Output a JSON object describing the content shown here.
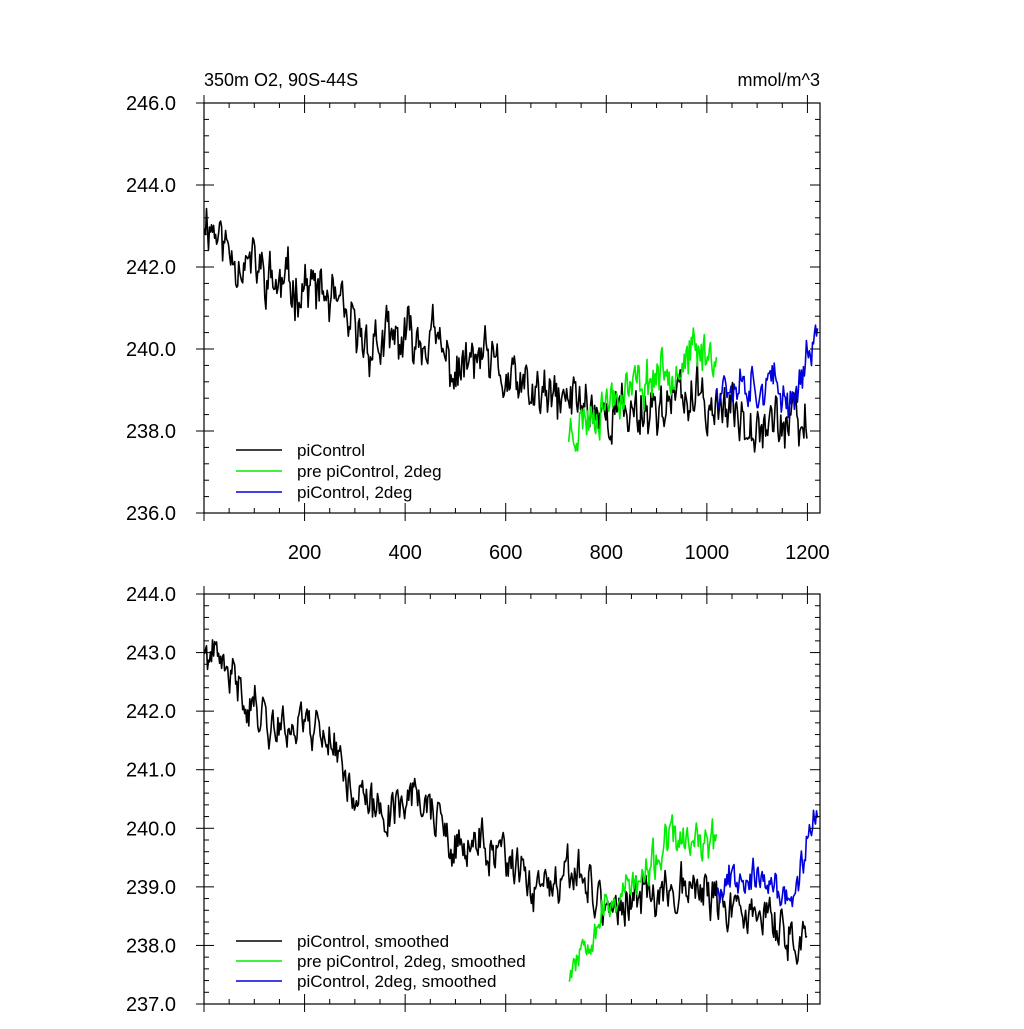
{
  "colors": {
    "piControl": "#000000",
    "pre_piControl_2deg": "#00ee00",
    "piControl_2deg": "#0000dd"
  },
  "chart_data": [
    {
      "type": "line",
      "title": "350m O2, 90S-44S",
      "units": "mmol/m^3",
      "xlim": [
        0,
        1225
      ],
      "ylim": [
        236.0,
        246.0
      ],
      "x_ticks": [
        200,
        400,
        600,
        800,
        1000,
        1200
      ],
      "x_tick_labels": [
        "200",
        "400",
        "600",
        "800",
        "1000",
        "1200"
      ],
      "y_ticks": [
        236,
        238,
        240,
        242,
        244,
        246
      ],
      "y_tick_labels": [
        "236.0",
        "238.0",
        "240.0",
        "242.0",
        "244.0",
        "246.0"
      ],
      "legend_position": "bottom-left",
      "series": [
        {
          "name": "piControl",
          "color": "#000000",
          "x": [
            1,
            50,
            100,
            150,
            200,
            250,
            300,
            350,
            400,
            450,
            500,
            550,
            600,
            650,
            700,
            750,
            800,
            850,
            900,
            950,
            1000,
            1050,
            1100,
            1150,
            1200
          ],
          "mean": [
            243.3,
            242.4,
            242.0,
            241.5,
            241.6,
            241.2,
            240.3,
            240.1,
            240.2,
            240.3,
            239.4,
            239.8,
            239.2,
            238.9,
            238.7,
            238.8,
            238.4,
            238.5,
            238.6,
            238.8,
            238.7,
            238.4,
            238.4,
            238.2,
            238.0
          ],
          "noise": 0.7,
          "seed": 11
        },
        {
          "name": "pre piControl, 2deg",
          "color": "#00ee00",
          "x": [
            725,
            775,
            825,
            875,
            925,
            975,
            1020
          ],
          "mean": [
            238.0,
            238.5,
            239.0,
            239.2,
            239.6,
            239.8,
            240.0
          ],
          "noise": 0.6,
          "seed": 23
        },
        {
          "name": "piControl, 2deg",
          "color": "#0000dd",
          "x": [
            1020,
            1070,
            1120,
            1170,
            1220
          ],
          "mean": [
            239.2,
            239.3,
            239.1,
            238.8,
            240.4
          ],
          "noise": 0.55,
          "seed": 37
        }
      ]
    },
    {
      "type": "line",
      "title": "",
      "xlim": [
        0,
        1225
      ],
      "ylim": [
        237.0,
        244.0
      ],
      "x_ticks": [
        200,
        400,
        600,
        800,
        1000,
        1200
      ],
      "y_ticks": [
        237,
        238,
        239,
        240,
        241,
        242,
        243,
        244
      ],
      "y_tick_labels": [
        "237.0",
        "238.0",
        "239.0",
        "240.0",
        "241.0",
        "242.0",
        "243.0",
        "244.0"
      ],
      "legend_position": "bottom-left",
      "series": [
        {
          "name": "piControl, smoothed",
          "color": "#000000",
          "x": [
            1,
            50,
            100,
            150,
            200,
            250,
            300,
            350,
            400,
            450,
            500,
            550,
            600,
            650,
            700,
            750,
            800,
            850,
            900,
            950,
            1000,
            1050,
            1100,
            1150,
            1200
          ],
          "mean": [
            243.0,
            242.6,
            242.1,
            241.7,
            241.9,
            241.6,
            240.6,
            240.2,
            240.6,
            240.4,
            239.5,
            239.8,
            239.4,
            239.0,
            238.9,
            239.3,
            238.6,
            238.7,
            238.9,
            239.1,
            238.9,
            238.5,
            238.6,
            238.2,
            238.1
          ],
          "noise": 0.4,
          "seed": 41
        },
        {
          "name": "pre piControl, 2deg, smoothed",
          "color": "#00ee00",
          "x": [
            725,
            775,
            825,
            875,
            925,
            975,
            1020
          ],
          "mean": [
            237.6,
            238.4,
            238.9,
            239.1,
            239.8,
            239.7,
            239.7
          ],
          "noise": 0.35,
          "seed": 53
        },
        {
          "name": "piControl, 2deg, smoothed",
          "color": "#0000dd",
          "x": [
            1020,
            1070,
            1120,
            1170,
            1220
          ],
          "mean": [
            239.0,
            239.3,
            239.0,
            238.8,
            240.4
          ],
          "noise": 0.3,
          "seed": 67
        }
      ]
    }
  ]
}
